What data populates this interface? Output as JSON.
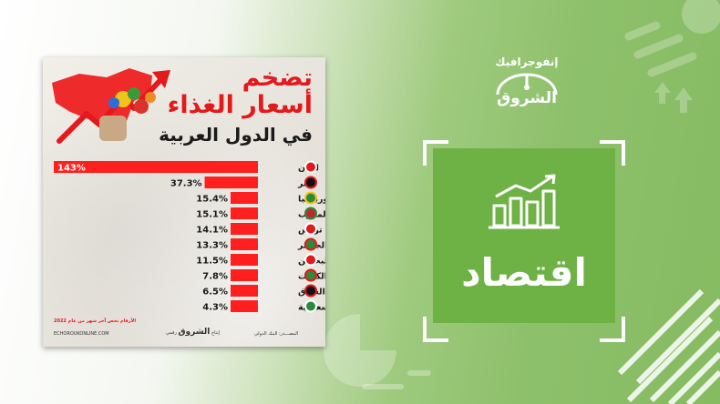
{
  "card": {
    "title_line1": "تضخم",
    "title_line2": "أسعار الغذاء",
    "title_line3": "في الدول العربية",
    "note": "الأرقام تخص آخر شهر من عام 2022",
    "website": "ECHOROUKONLINE.COM",
    "producer_label": "إنتاج",
    "producer_name": "الشروق",
    "producer_suffix": "رقمي",
    "source": "المصـــدر: البنك الدولي"
  },
  "chart_data": {
    "type": "bar",
    "orientation": "horizontal",
    "categories": [
      "لبنان",
      "مصر",
      "موريتانيا",
      "المغرب",
      "تونس",
      "الجزائر",
      "البحرين",
      "الكويت",
      "العراق",
      "السعودية"
    ],
    "values": [
      143,
      37.3,
      15.4,
      15.1,
      14.1,
      13.3,
      11.5,
      7.8,
      6.5,
      4.3
    ],
    "value_labels": [
      "143%",
      "37.3%",
      "15.4%",
      "15.1%",
      "14.1%",
      "13.3%",
      "11.5%",
      "7.8%",
      "6.5%",
      "4.3%"
    ],
    "bar_color": "#ff1f1f",
    "label_color_first": "#ffffff",
    "label_color_rest": "#1a1a1a",
    "legend": "none",
    "grid": false
  },
  "right_panel": {
    "brand_top": "إنفوجرافيك",
    "brand_logo": "الشروق",
    "category": "اقتصاد",
    "accent_green": "#6eb145",
    "icon": "bar-chart-trend-icon"
  }
}
